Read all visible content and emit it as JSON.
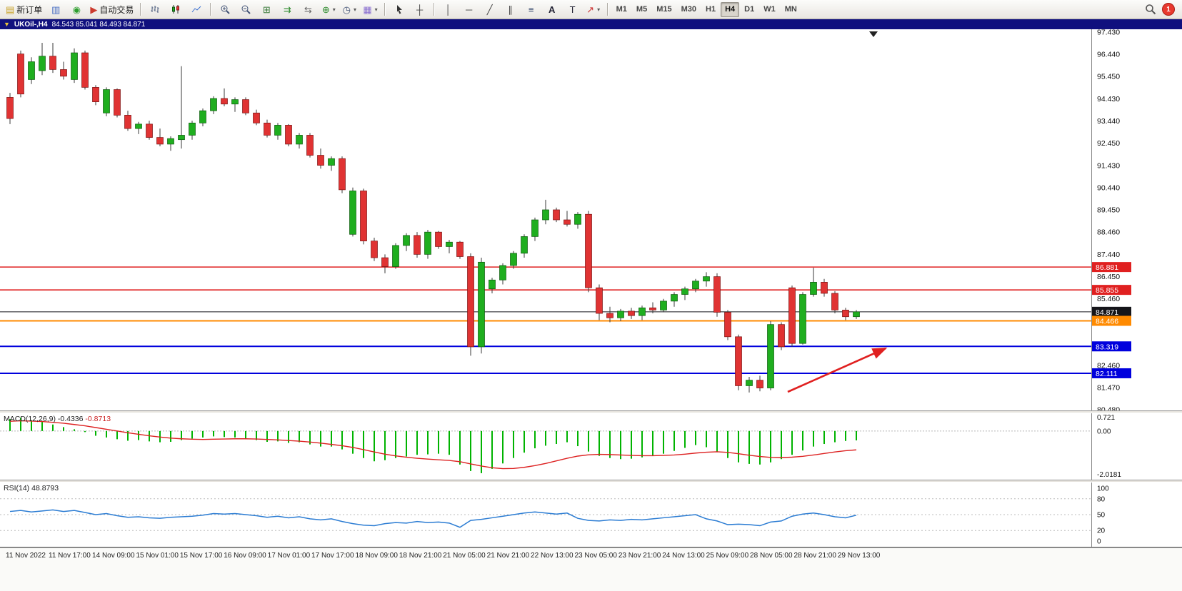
{
  "toolbar": {
    "new_order": "新订单",
    "auto_trading": "自动交易",
    "timeframes": [
      "M1",
      "M5",
      "M15",
      "M30",
      "H1",
      "H4",
      "D1",
      "W1",
      "MN"
    ],
    "active_timeframe": "H4",
    "notification_count": "1"
  },
  "title_bar": {
    "symbol": "UKOil-,H4",
    "ohlc": "84.543 85.041 84.493 84.871"
  },
  "price_axis_labels": [
    "97.430",
    "96.440",
    "95.450",
    "94.430",
    "93.440",
    "92.450",
    "91.430",
    "90.440",
    "89.450",
    "88.460",
    "87.440",
    "86.450",
    "85.460",
    "82.460",
    "81.470",
    "80.480"
  ],
  "levels": [
    {
      "label": "86.881",
      "price": 86.881,
      "color": "#e02020",
      "width": 1.6
    },
    {
      "label": "85.855",
      "price": 85.855,
      "color": "#e02020",
      "width": 1.6
    },
    {
      "label": "84.871",
      "price": 84.871,
      "color": "#15151a",
      "width": 1
    },
    {
      "label": "84.466",
      "price": 84.466,
      "color": "#ff8a00",
      "width": 2
    },
    {
      "label": "83.319",
      "price": 83.319,
      "color": "#0000dd",
      "width": 2
    },
    {
      "label": "82.111",
      "price": 82.111,
      "color": "#0000dd",
      "width": 2
    }
  ],
  "time_axis": [
    "11 Nov 2022",
    "11 Nov 17:00",
    "14 Nov 09:00",
    "15 Nov 01:00",
    "15 Nov 17:00",
    "16 Nov 09:00",
    "17 Nov 01:00",
    "17 Nov 17:00",
    "18 Nov 09:00",
    "18 Nov 21:00",
    "21 Nov 05:00",
    "21 Nov 21:00",
    "22 Nov 13:00",
    "23 Nov 05:00",
    "23 Nov 21:00",
    "24 Nov 13:00",
    "25 Nov 09:00",
    "28 Nov 05:00",
    "28 Nov 21:00",
    "29 Nov 13:00"
  ],
  "indicators": {
    "macd": {
      "name": "MACD(12,26,9)",
      "value_main": "-0.4336",
      "value_signal": "-0.8713",
      "axis": [
        "0.721",
        "0.00",
        "-2.0181"
      ]
    },
    "rsi": {
      "name": "RSI(14)",
      "value": "48.8793",
      "axis": [
        "100",
        "80",
        "50",
        "20",
        "0"
      ]
    }
  },
  "chart_data": {
    "type": "candlestick",
    "symbol": "UKOil-",
    "period": "H4",
    "price_range": [
      80.48,
      97.43
    ],
    "up_color": "#1fae1f",
    "down_color": "#e03333",
    "macd_color": "#00b300",
    "signal_color": "#dd2222",
    "rsi_color": "#2b7cd3",
    "candles": [
      [
        94.5,
        94.7,
        93.3,
        93.55
      ],
      [
        96.45,
        96.6,
        94.5,
        94.65
      ],
      [
        95.3,
        96.3,
        95.1,
        96.1
      ],
      [
        95.7,
        96.95,
        95.5,
        96.35
      ],
      [
        96.35,
        96.95,
        95.6,
        95.75
      ],
      [
        95.75,
        96.1,
        95.3,
        95.45
      ],
      [
        95.3,
        96.7,
        95.15,
        96.5
      ],
      [
        96.5,
        96.6,
        94.85,
        94.95
      ],
      [
        94.95,
        95.05,
        94.15,
        94.3
      ],
      [
        93.8,
        94.95,
        93.65,
        94.85
      ],
      [
        94.85,
        94.9,
        93.6,
        93.7
      ],
      [
        93.7,
        93.9,
        93.0,
        93.1
      ],
      [
        93.1,
        93.4,
        92.85,
        93.3
      ],
      [
        93.3,
        93.45,
        92.6,
        92.7
      ],
      [
        92.7,
        93.1,
        92.3,
        92.4
      ],
      [
        92.4,
        92.75,
        92.1,
        92.65
      ],
      [
        92.6,
        95.9,
        92.2,
        92.8
      ],
      [
        92.8,
        93.45,
        92.6,
        93.35
      ],
      [
        93.35,
        94.0,
        93.2,
        93.9
      ],
      [
        93.9,
        94.55,
        93.75,
        94.45
      ],
      [
        94.45,
        94.9,
        94.1,
        94.2
      ],
      [
        94.2,
        94.5,
        93.85,
        94.4
      ],
      [
        94.4,
        94.5,
        93.7,
        93.8
      ],
      [
        93.8,
        93.95,
        93.25,
        93.35
      ],
      [
        93.35,
        93.5,
        92.7,
        92.8
      ],
      [
        92.8,
        93.35,
        92.6,
        93.25
      ],
      [
        93.25,
        93.3,
        92.3,
        92.4
      ],
      [
        92.4,
        92.9,
        92.2,
        92.8
      ],
      [
        92.8,
        92.9,
        91.8,
        91.9
      ],
      [
        91.9,
        92.2,
        91.3,
        91.45
      ],
      [
        91.45,
        91.85,
        91.2,
        91.75
      ],
      [
        91.75,
        91.85,
        90.2,
        90.35
      ],
      [
        88.35,
        90.45,
        88.25,
        90.3
      ],
      [
        90.3,
        90.4,
        87.9,
        88.05
      ],
      [
        88.05,
        88.2,
        87.15,
        87.3
      ],
      [
        87.3,
        87.45,
        86.6,
        86.9
      ],
      [
        86.9,
        87.95,
        86.8,
        87.85
      ],
      [
        87.85,
        88.4,
        87.6,
        88.3
      ],
      [
        88.3,
        88.45,
        87.3,
        87.45
      ],
      [
        87.45,
        88.55,
        87.25,
        88.45
      ],
      [
        88.45,
        88.5,
        87.7,
        87.8
      ],
      [
        87.8,
        88.1,
        87.5,
        88.0
      ],
      [
        88.0,
        88.05,
        87.25,
        87.35
      ],
      [
        87.35,
        87.5,
        82.9,
        83.3
      ],
      [
        83.3,
        87.3,
        83.0,
        87.1
      ],
      [
        85.9,
        86.4,
        85.7,
        86.3
      ],
      [
        86.3,
        87.05,
        86.1,
        86.95
      ],
      [
        86.95,
        87.6,
        86.8,
        87.5
      ],
      [
        87.5,
        88.35,
        87.3,
        88.25
      ],
      [
        88.25,
        89.1,
        88.05,
        89.0
      ],
      [
        89.0,
        89.9,
        88.8,
        89.45
      ],
      [
        89.45,
        89.55,
        88.9,
        89.0
      ],
      [
        89.0,
        89.4,
        88.7,
        88.8
      ],
      [
        88.8,
        89.35,
        88.6,
        89.25
      ],
      [
        89.25,
        89.4,
        85.75,
        85.95
      ],
      [
        85.95,
        86.1,
        84.5,
        84.8
      ],
      [
        84.8,
        85.1,
        84.4,
        84.6
      ],
      [
        84.6,
        85.0,
        84.45,
        84.9
      ],
      [
        84.9,
        85.05,
        84.55,
        84.7
      ],
      [
        84.7,
        85.15,
        84.5,
        85.05
      ],
      [
        85.05,
        85.3,
        84.8,
        84.95
      ],
      [
        84.95,
        85.45,
        84.85,
        85.35
      ],
      [
        85.35,
        85.75,
        85.1,
        85.65
      ],
      [
        85.65,
        86.0,
        85.4,
        85.9
      ],
      [
        85.9,
        86.35,
        85.75,
        86.25
      ],
      [
        86.25,
        86.65,
        86.0,
        86.45
      ],
      [
        86.45,
        86.6,
        84.65,
        84.85
      ],
      [
        84.85,
        84.95,
        83.6,
        83.75
      ],
      [
        83.75,
        83.85,
        81.35,
        81.55
      ],
      [
        81.55,
        81.95,
        81.25,
        81.8
      ],
      [
        81.8,
        82.0,
        81.3,
        81.45
      ],
      [
        81.45,
        84.45,
        81.35,
        84.3
      ],
      [
        84.3,
        84.4,
        83.15,
        83.3
      ],
      [
        85.95,
        86.05,
        83.3,
        83.45
      ],
      [
        83.45,
        85.75,
        83.4,
        85.65
      ],
      [
        85.65,
        86.85,
        85.55,
        86.2
      ],
      [
        86.2,
        86.35,
        85.55,
        85.7
      ],
      [
        85.7,
        85.8,
        84.8,
        84.95
      ],
      [
        84.95,
        85.05,
        84.5,
        84.65
      ],
      [
        84.65,
        84.95,
        84.55,
        84.871
      ]
    ],
    "macd_histogram": [
      0.55,
      0.62,
      0.5,
      0.42,
      0.3,
      0.18,
      0.08,
      -0.05,
      -0.22,
      -0.3,
      -0.38,
      -0.45,
      -0.42,
      -0.48,
      -0.52,
      -0.5,
      -0.42,
      -0.35,
      -0.3,
      -0.25,
      -0.28,
      -0.3,
      -0.35,
      -0.42,
      -0.5,
      -0.48,
      -0.55,
      -0.52,
      -0.62,
      -0.72,
      -0.72,
      -0.85,
      -1.05,
      -1.25,
      -1.4,
      -1.35,
      -1.25,
      -1.18,
      -1.1,
      -1.08,
      -1.05,
      -1.1,
      -1.55,
      -1.85,
      -1.95,
      -1.75,
      -1.5,
      -1.25,
      -1.0,
      -0.8,
      -0.68,
      -0.6,
      -0.52,
      -0.7,
      -0.95,
      -1.15,
      -1.25,
      -1.3,
      -1.28,
      -1.22,
      -1.15,
      -1.05,
      -0.92,
      -0.78,
      -0.65,
      -0.75,
      -0.95,
      -1.25,
      -1.45,
      -1.52,
      -1.55,
      -1.45,
      -1.3,
      -1.1,
      -0.9,
      -0.72,
      -0.6,
      -0.52,
      -0.46,
      -0.4336
    ],
    "macd_signal": [
      0.45,
      0.47,
      0.46,
      0.44,
      0.4,
      0.36,
      0.3,
      0.24,
      0.16,
      0.08,
      0.0,
      -0.08,
      -0.15,
      -0.22,
      -0.28,
      -0.33,
      -0.36,
      -0.38,
      -0.39,
      -0.38,
      -0.37,
      -0.36,
      -0.36,
      -0.37,
      -0.39,
      -0.41,
      -0.44,
      -0.47,
      -0.51,
      -0.56,
      -0.62,
      -0.68,
      -0.76,
      -0.86,
      -0.97,
      -1.07,
      -1.15,
      -1.21,
      -1.26,
      -1.3,
      -1.33,
      -1.36,
      -1.42,
      -1.52,
      -1.62,
      -1.7,
      -1.74,
      -1.73,
      -1.68,
      -1.6,
      -1.5,
      -1.38,
      -1.26,
      -1.16,
      -1.1,
      -1.08,
      -1.09,
      -1.11,
      -1.13,
      -1.14,
      -1.14,
      -1.13,
      -1.11,
      -1.07,
      -1.02,
      -0.98,
      -0.96,
      -0.99,
      -1.05,
      -1.12,
      -1.18,
      -1.22,
      -1.23,
      -1.21,
      -1.17,
      -1.11,
      -1.04,
      -0.97,
      -0.91,
      -0.8713
    ],
    "rsi": [
      56,
      58,
      55,
      57,
      59,
      56,
      58,
      54,
      50,
      52,
      48,
      45,
      46,
      44,
      43,
      45,
      46,
      47,
      49,
      52,
      51,
      52,
      50,
      48,
      45,
      47,
      44,
      46,
      42,
      40,
      42,
      37,
      33,
      30,
      29,
      33,
      35,
      34,
      37,
      35,
      36,
      34,
      26,
      39,
      41,
      44,
      47,
      50,
      53,
      55,
      53,
      51,
      53,
      43,
      39,
      38,
      40,
      39,
      41,
      40,
      42,
      44,
      46,
      48,
      50,
      42,
      38,
      31,
      32,
      31,
      29,
      36,
      38,
      47,
      51,
      53,
      50,
      46,
      44,
      48.8793
    ],
    "macd_range": [
      -2.0181,
      0.721
    ],
    "rsi_range": [
      0,
      100
    ],
    "rsi_levels": [
      80,
      50,
      20
    ]
  },
  "annotations": {
    "trend_arrow": {
      "color": "#e02020"
    }
  }
}
